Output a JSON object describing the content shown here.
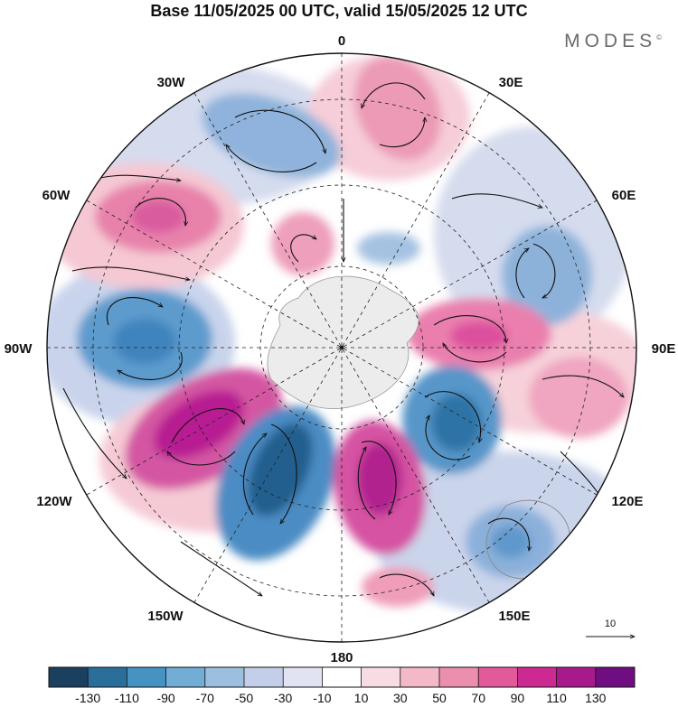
{
  "header": {
    "title": "Base 11/05/2025 00 UTC, valid 15/05/2025 12 UTC",
    "brand": "MODES",
    "brand_mark": "©"
  },
  "map": {
    "projection": "south-polar-stereographic",
    "longitude_labels": {
      "lon_0": "0",
      "lon_30e": "30E",
      "lon_60e": "60E",
      "lon_90e": "90E",
      "lon_120e": "120E",
      "lon_150e": "150E",
      "lon_180": "180",
      "lon_150w": "150W",
      "lon_120w": "120W",
      "lon_90w": "90W",
      "lon_60w": "60W",
      "lon_30w": "30W"
    },
    "wind_reference": {
      "label": "10"
    }
  },
  "colorbar": {
    "colors": [
      "#1b3f5e",
      "#2a6e9a",
      "#4592c3",
      "#72add6",
      "#9cbfe0",
      "#c3cfe8",
      "#e2e3f2",
      "#ffffff",
      "#f7dde3",
      "#f3b9c8",
      "#ec8fae",
      "#e35a9b",
      "#cc2a92",
      "#a81a8c",
      "#6e0e80"
    ],
    "tick_labels": [
      "-130",
      "-110",
      "-90",
      "-70",
      "-50",
      "-30",
      "-10",
      "10",
      "30",
      "50",
      "70",
      "90",
      "110",
      "130"
    ]
  }
}
